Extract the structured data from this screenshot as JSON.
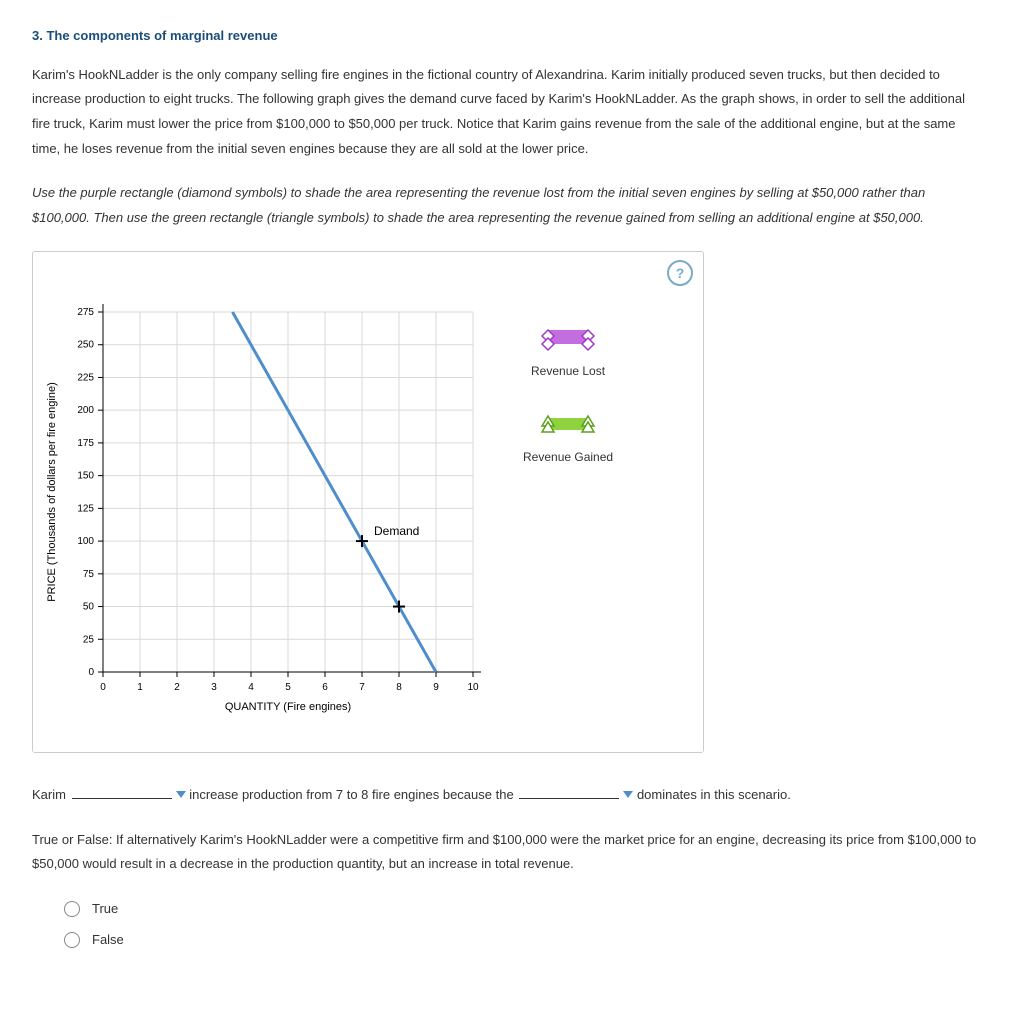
{
  "heading": "3. The components of marginal revenue",
  "paragraph1": "Karim's HookNLadder is the only company selling fire engines in the fictional country of Alexandrina. Karim initially produced seven trucks, but then decided to increase production to eight trucks. The following graph gives the demand curve faced by Karim's HookNLadder. As the graph shows, in order to sell the additional fire truck, Karim must lower the price from $100,000 to $50,000 per truck. Notice that Karim gains revenue from the sale of the additional engine, but at the same time, he loses revenue from the initial seven engines because they are all sold at the lower price.",
  "paragraph2": "Use the purple rectangle (diamond symbols) to shade the area representing the revenue lost from the initial seven engines by selling at $50,000 rather than $100,000. Then use the green rectangle (triangle symbols) to shade the area representing the revenue gained from selling an additional engine at $50,000.",
  "help_label": "?",
  "chart": {
    "type": "line",
    "x_axis": {
      "label": "QUANTITY (Fire engines)",
      "min": 0,
      "max": 10,
      "ticks": [
        0,
        1,
        2,
        3,
        4,
        5,
        6,
        7,
        8,
        9,
        10
      ]
    },
    "y_axis": {
      "label": "PRICE (Thousands of dollars per fire engine)",
      "min": 0,
      "max": 275,
      "ticks": [
        0,
        25,
        50,
        75,
        100,
        125,
        150,
        175,
        200,
        225,
        250,
        275
      ]
    },
    "grid_color": "#d9d9d9",
    "axis_color": "#000000",
    "background": "#ffffff",
    "demand": {
      "label": "Demand",
      "color": "#4f8ecb",
      "width": 3,
      "points": [
        [
          3,
          300
        ],
        [
          9,
          0
        ]
      ],
      "markers": [
        [
          7,
          100
        ],
        [
          8,
          50
        ]
      ]
    },
    "label_fontsize": 11,
    "tick_fontsize": 10
  },
  "legend": {
    "lost": {
      "label": "Revenue Lost",
      "fill": "#c36de0",
      "marker": "diamond",
      "marker_stroke": "#a038cc"
    },
    "gained": {
      "label": "Revenue Gained",
      "fill": "#8fd13f",
      "marker": "triangle",
      "marker_stroke": "#5aa11e"
    }
  },
  "sentence": {
    "pre": "Karim",
    "mid": "increase production from 7 to 8 fire engines because the",
    "post": "dominates in this scenario."
  },
  "tf_prompt": "True or False: If alternatively Karim's HookNLadder were a competitive firm and $100,000 were the market price for an engine, decreasing its price from $100,000 to $50,000 would result in a decrease in the production quantity, but an increase in total revenue.",
  "tf_true": "True",
  "tf_false": "False"
}
